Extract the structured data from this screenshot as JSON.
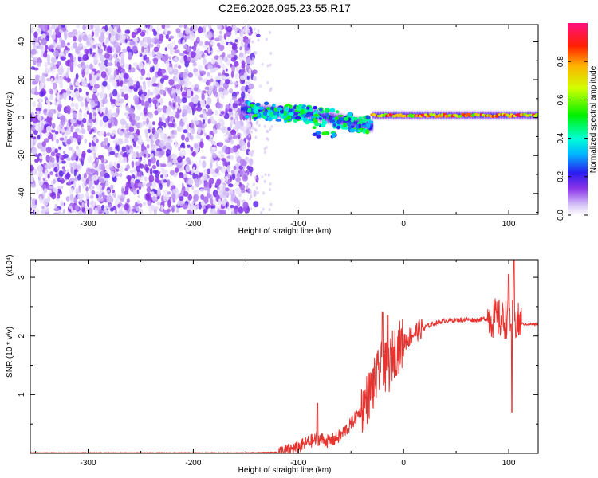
{
  "title": "C2E6.2026.095.23.55.R17",
  "chart_data": [
    {
      "type": "heatmap",
      "title": "C2E6.2026.095.23.55.R17",
      "xlabel": "Height of straight line (km)",
      "ylabel": "Frequency (Hz)",
      "xlim": [
        -355,
        128
      ],
      "ylim": [
        -51,
        49
      ],
      "xticks": [
        -300,
        -200,
        -100,
        0,
        100
      ],
      "xtick_labels": [
        "-300",
        "-200",
        "-100",
        "0",
        "100"
      ],
      "yticks": [
        -40,
        -20,
        0,
        20,
        40
      ],
      "ytick_labels": [
        "-40",
        "-20",
        "0",
        "20",
        "40"
      ],
      "colorbar": {
        "label": "Normalized spectral amplitude",
        "range": [
          0,
          1
        ],
        "ticks": [
          0.0,
          0.2,
          0.4,
          0.6,
          0.8
        ],
        "tick_labels": [
          "0.0",
          "0.2",
          "0.4",
          "0.6",
          "0.8"
        ],
        "colormap": "rainbow (white-purple-blue-cyan-green-yellow-red-magenta)"
      },
      "description_regions": [
        {
          "x_from": -355,
          "x_to": -145,
          "freq_range": [
            -51,
            49
          ],
          "amplitude": "low, noise"
        },
        {
          "x_from": -155,
          "x_to": -30,
          "freq_center": 3,
          "freq_drift_to": -6,
          "amplitude": "medium"
        },
        {
          "x_from": -30,
          "x_to": 128,
          "freq_center": 1,
          "amplitude": "high"
        }
      ]
    },
    {
      "type": "line",
      "xlabel": "Height of straight line (km)",
      "ylabel": "SNR (10 * v/v)",
      "y_multiplier": "(x10⁴)",
      "xlim": [
        -355,
        128
      ],
      "ylim": [
        0,
        3.3
      ],
      "xticks": [
        -300,
        -200,
        -100,
        0,
        100
      ],
      "xtick_labels": [
        "-300",
        "-200",
        "-100",
        "0",
        "100"
      ],
      "yticks": [
        1,
        2,
        3
      ],
      "ytick_labels": [
        "1",
        "2",
        "3"
      ],
      "color": "#e8322e",
      "series": [
        {
          "name": "SNR",
          "x": [
            -355,
            -300,
            -250,
            -200,
            -150,
            -120,
            -110,
            -100,
            -90,
            -80,
            -70,
            -60,
            -50,
            -40,
            -30,
            -20,
            -15,
            -10,
            -5,
            0,
            10,
            20,
            30,
            40,
            50,
            60,
            70,
            80,
            90,
            95,
            100,
            105,
            110,
            115,
            120,
            128
          ],
          "values": [
            0.01,
            0.01,
            0.01,
            0.01,
            0.01,
            0.02,
            0.05,
            0.1,
            0.2,
            0.25,
            0.2,
            0.3,
            0.5,
            0.75,
            1.1,
            1.5,
            1.4,
            1.7,
            1.8,
            1.9,
            2.05,
            2.15,
            2.22,
            2.26,
            2.27,
            2.28,
            2.27,
            2.3,
            2.3,
            2.25,
            2.35,
            2.25,
            2.22,
            2.2,
            2.2,
            2.2
          ]
        }
      ],
      "spikes": [
        {
          "x": -82,
          "value": 0.85
        },
        {
          "x": -20,
          "value": 2.4
        },
        {
          "x": -15,
          "value": 2.35
        },
        {
          "x": 100,
          "value": 3.05
        },
        {
          "x": 105,
          "value": 3.3
        },
        {
          "x": 103,
          "value": 0.7
        }
      ]
    }
  ]
}
